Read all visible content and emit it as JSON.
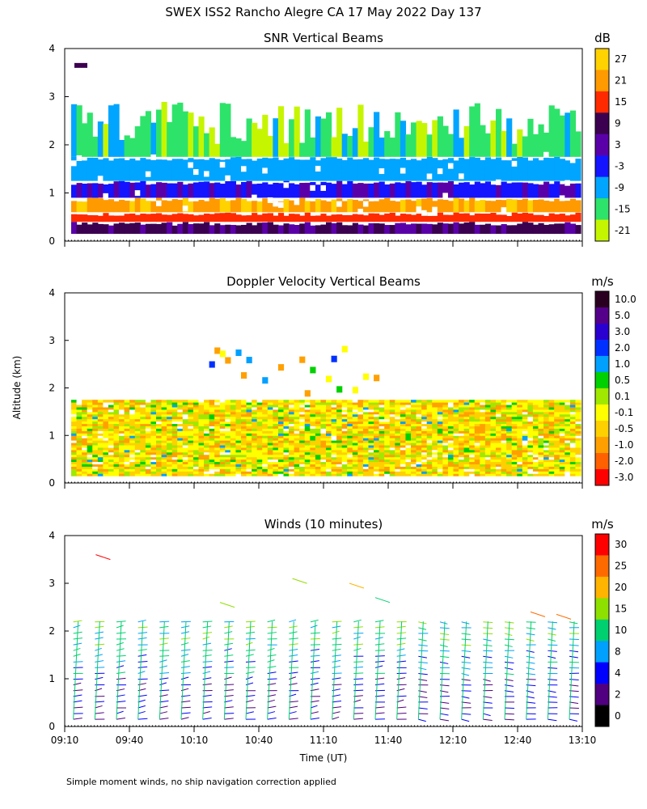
{
  "figure": {
    "title": "SWEX ISS2 Rancho Alegre CA  17 May 2022 Day 137",
    "y_axis_label": "Altitude (km)",
    "x_axis_label": "Time (UT)",
    "footnote": "Simple moment winds, no ship navigation correction applied"
  },
  "chart_data": [
    {
      "type": "heatmap",
      "title": "SNR Vertical Beams",
      "ylim": [
        0,
        4
      ],
      "y_ticks": [
        "0",
        "1",
        "2",
        "3",
        "4"
      ],
      "x_ticks": [],
      "colorbar": {
        "unit": "dB",
        "labels": [
          "27",
          "21",
          "15",
          "9",
          "3",
          "-3",
          "-9",
          "-15",
          "-21"
        ],
        "colors": [
          "#ffd200",
          "#ff9a00",
          "#ff2a00",
          "#3b0050",
          "#5a00a8",
          "#1414ff",
          "#00a5ff",
          "#2ee36a",
          "#c6f500"
        ]
      },
      "layers": [
        {
          "ymin": 0.15,
          "ymax": 0.4,
          "snr": "9"
        },
        {
          "ymin": 0.4,
          "ymax": 0.6,
          "snr": "15"
        },
        {
          "ymin": 0.6,
          "ymax": 0.9,
          "snr": "21"
        },
        {
          "ymin": 0.9,
          "ymax": 1.25,
          "snr": "-3"
        },
        {
          "ymin": 1.25,
          "ymax": 1.75,
          "snr": "-9"
        },
        {
          "ymin": 1.75,
          "ymax": 2.9,
          "snr": "-15"
        }
      ]
    },
    {
      "type": "heatmap",
      "title": "Doppler Velocity Vertical Beams",
      "ylim": [
        0,
        4
      ],
      "y_ticks": [
        "0",
        "1",
        "2",
        "3",
        "4"
      ],
      "x_ticks": [],
      "colorbar": {
        "unit": "m/s",
        "labels": [
          "10.0",
          "5.0",
          "3.0",
          "2.0",
          "1.0",
          "0.5",
          "0.1",
          "-0.1",
          "-0.5",
          "-1.0",
          "-2.0",
          "-3.0"
        ],
        "colors": [
          "#2a0020",
          "#55008a",
          "#2a00d0",
          "#0030ff",
          "#00a0ff",
          "#00d000",
          "#a0e800",
          "#ffff00",
          "#ffd000",
          "#ffa000",
          "#ff6000",
          "#ff0000"
        ]
      },
      "layers": [
        {
          "ymin": 0.15,
          "ymax": 1.75,
          "velocity": "-0.1 to -0.5"
        },
        {
          "ymin": 1.75,
          "ymax": 3.1,
          "velocity": "sparse, mixed"
        }
      ]
    },
    {
      "type": "scatter",
      "title": "Winds (10 minutes)",
      "ylim": [
        0,
        4
      ],
      "xlim": [
        "09:10",
        "13:10"
      ],
      "y_ticks": [
        "0",
        "1",
        "2",
        "3",
        "4"
      ],
      "x_ticks": [
        "09:10",
        "09:40",
        "10:10",
        "10:40",
        "11:10",
        "11:40",
        "12:10",
        "12:40",
        "13:10"
      ],
      "colorbar": {
        "unit": "m/s",
        "labels": [
          "30",
          "25",
          "20",
          "15",
          "10",
          "8",
          "4",
          "2",
          "0"
        ],
        "colors": [
          "#ff0000",
          "#ff6a00",
          "#ffb400",
          "#8ee000",
          "#00d070",
          "#00a0ff",
          "#0000ff",
          "#500080",
          "#000000"
        ]
      },
      "profiles_lower_speed": "2-8 m/s",
      "profiles_upper_speed": "10-20 m/s"
    }
  ]
}
